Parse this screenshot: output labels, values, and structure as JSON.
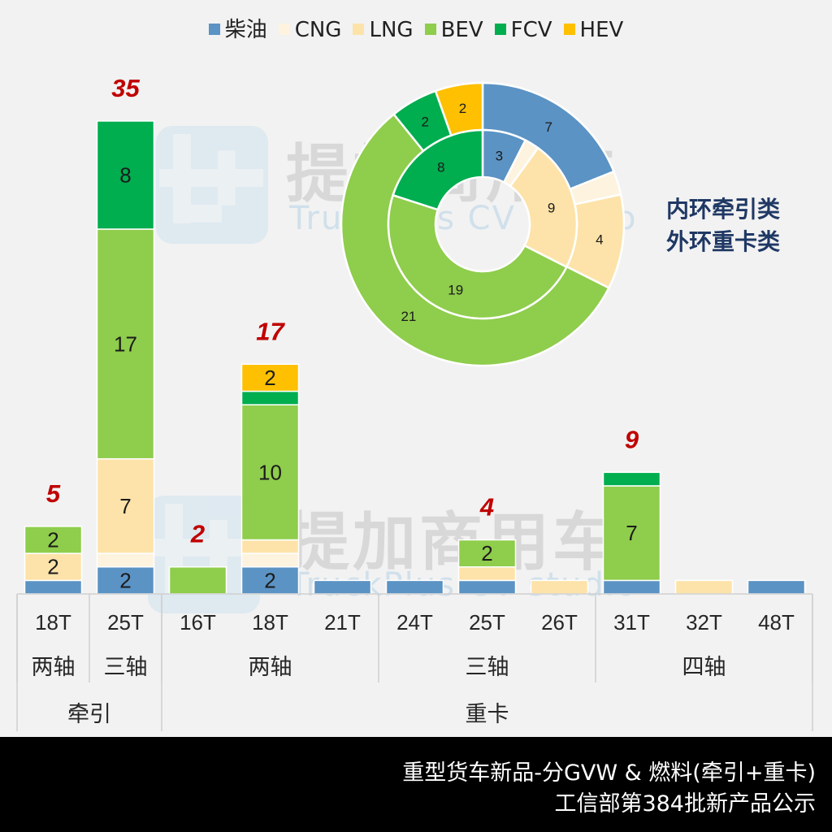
{
  "colors": {
    "柴油": "#5b93c4",
    "CNG": "#fdf3df",
    "LNG": "#fde3a9",
    "BEV": "#8fcd4c",
    "FCV": "#00ad4f",
    "HEV": "#fec000",
    "total_label": "#c00000",
    "ring_note": "#1f3864"
  },
  "watermark": {
    "brand_cn": "提加商用车",
    "brand_en": "TruckPlus CV studio"
  },
  "ring_note": {
    "line1": "内环牵引类",
    "line2": "外环重卡类"
  },
  "footer": {
    "line1": "重型货车新品-分GVW  & 燃料(牵引+重卡)",
    "line2": "工信部第384批新产品公示"
  },
  "chart_data": [
    {
      "type": "bar",
      "stacked": true,
      "legend": [
        "柴油",
        "CNG",
        "LNG",
        "BEV",
        "FCV",
        "HEV"
      ],
      "legend_position": "top",
      "categories": [
        "18T",
        "25T",
        "16T",
        "18T",
        "21T",
        "24T",
        "25T",
        "26T",
        "31T",
        "32T",
        "48T"
      ],
      "axle_groups": [
        {
          "label": "两轴",
          "span": 1
        },
        {
          "label": "三轴",
          "span": 1
        },
        {
          "label": "两轴",
          "span": 3
        },
        {
          "label": "三轴",
          "span": 3
        },
        {
          "label": "四轴",
          "span": 3
        }
      ],
      "type_groups": [
        {
          "label": "牵引",
          "span": 2
        },
        {
          "label": "重卡",
          "span": 9
        }
      ],
      "series": [
        {
          "name": "柴油",
          "values": [
            1,
            2,
            0,
            2,
            1,
            1,
            1,
            0,
            1,
            0,
            1
          ]
        },
        {
          "name": "CNG",
          "values": [
            0,
            1,
            0,
            1,
            0,
            0,
            0,
            0,
            0,
            0,
            0
          ]
        },
        {
          "name": "LNG",
          "values": [
            2,
            7,
            0,
            1,
            0,
            0,
            1,
            1,
            0,
            1,
            0
          ]
        },
        {
          "name": "BEV",
          "values": [
            2,
            17,
            2,
            10,
            0,
            0,
            2,
            0,
            7,
            0,
            0
          ]
        },
        {
          "name": "FCV",
          "values": [
            0,
            8,
            0,
            1,
            0,
            0,
            0,
            0,
            1,
            0,
            0
          ]
        },
        {
          "name": "HEV",
          "values": [
            0,
            0,
            0,
            2,
            0,
            0,
            0,
            0,
            0,
            0,
            0
          ]
        }
      ],
      "segment_labels_shown": [
        [
          null,
          "2",
          null,
          "2",
          null,
          null,
          null,
          null,
          null,
          null,
          null
        ],
        [
          null,
          null,
          null,
          null,
          null,
          null,
          null,
          null,
          null,
          null,
          null
        ],
        [
          "2",
          "7",
          null,
          null,
          null,
          null,
          null,
          null,
          null,
          null,
          null
        ],
        [
          "2",
          "17",
          null,
          "10",
          null,
          null,
          "2",
          null,
          "7",
          null,
          null
        ],
        [
          null,
          "8",
          null,
          null,
          null,
          null,
          null,
          null,
          null,
          null,
          null
        ],
        [
          null,
          null,
          null,
          "2",
          null,
          null,
          null,
          null,
          null,
          null,
          null
        ]
      ],
      "totals": [
        "5",
        "35",
        "2",
        "17",
        null,
        null,
        "4",
        null,
        "9",
        null,
        null
      ],
      "ylim": [
        0,
        35
      ]
    },
    {
      "type": "pie",
      "donut": true,
      "inner_ring": {
        "name": "牵引",
        "labels": [
          "柴油",
          "CNG",
          "LNG",
          "BEV",
          "FCV"
        ],
        "values": [
          3,
          1,
          9,
          19,
          8
        ],
        "value_labels": [
          "3",
          null,
          "9",
          "19",
          "8"
        ]
      },
      "outer_ring": {
        "name": "重卡",
        "labels": [
          "柴油",
          "CNG",
          "LNG",
          "BEV",
          "FCV",
          "HEV"
        ],
        "values": [
          7,
          1,
          4,
          21,
          2,
          2
        ],
        "value_labels": [
          "7",
          null,
          "4",
          "21",
          "2",
          "2"
        ]
      }
    }
  ]
}
